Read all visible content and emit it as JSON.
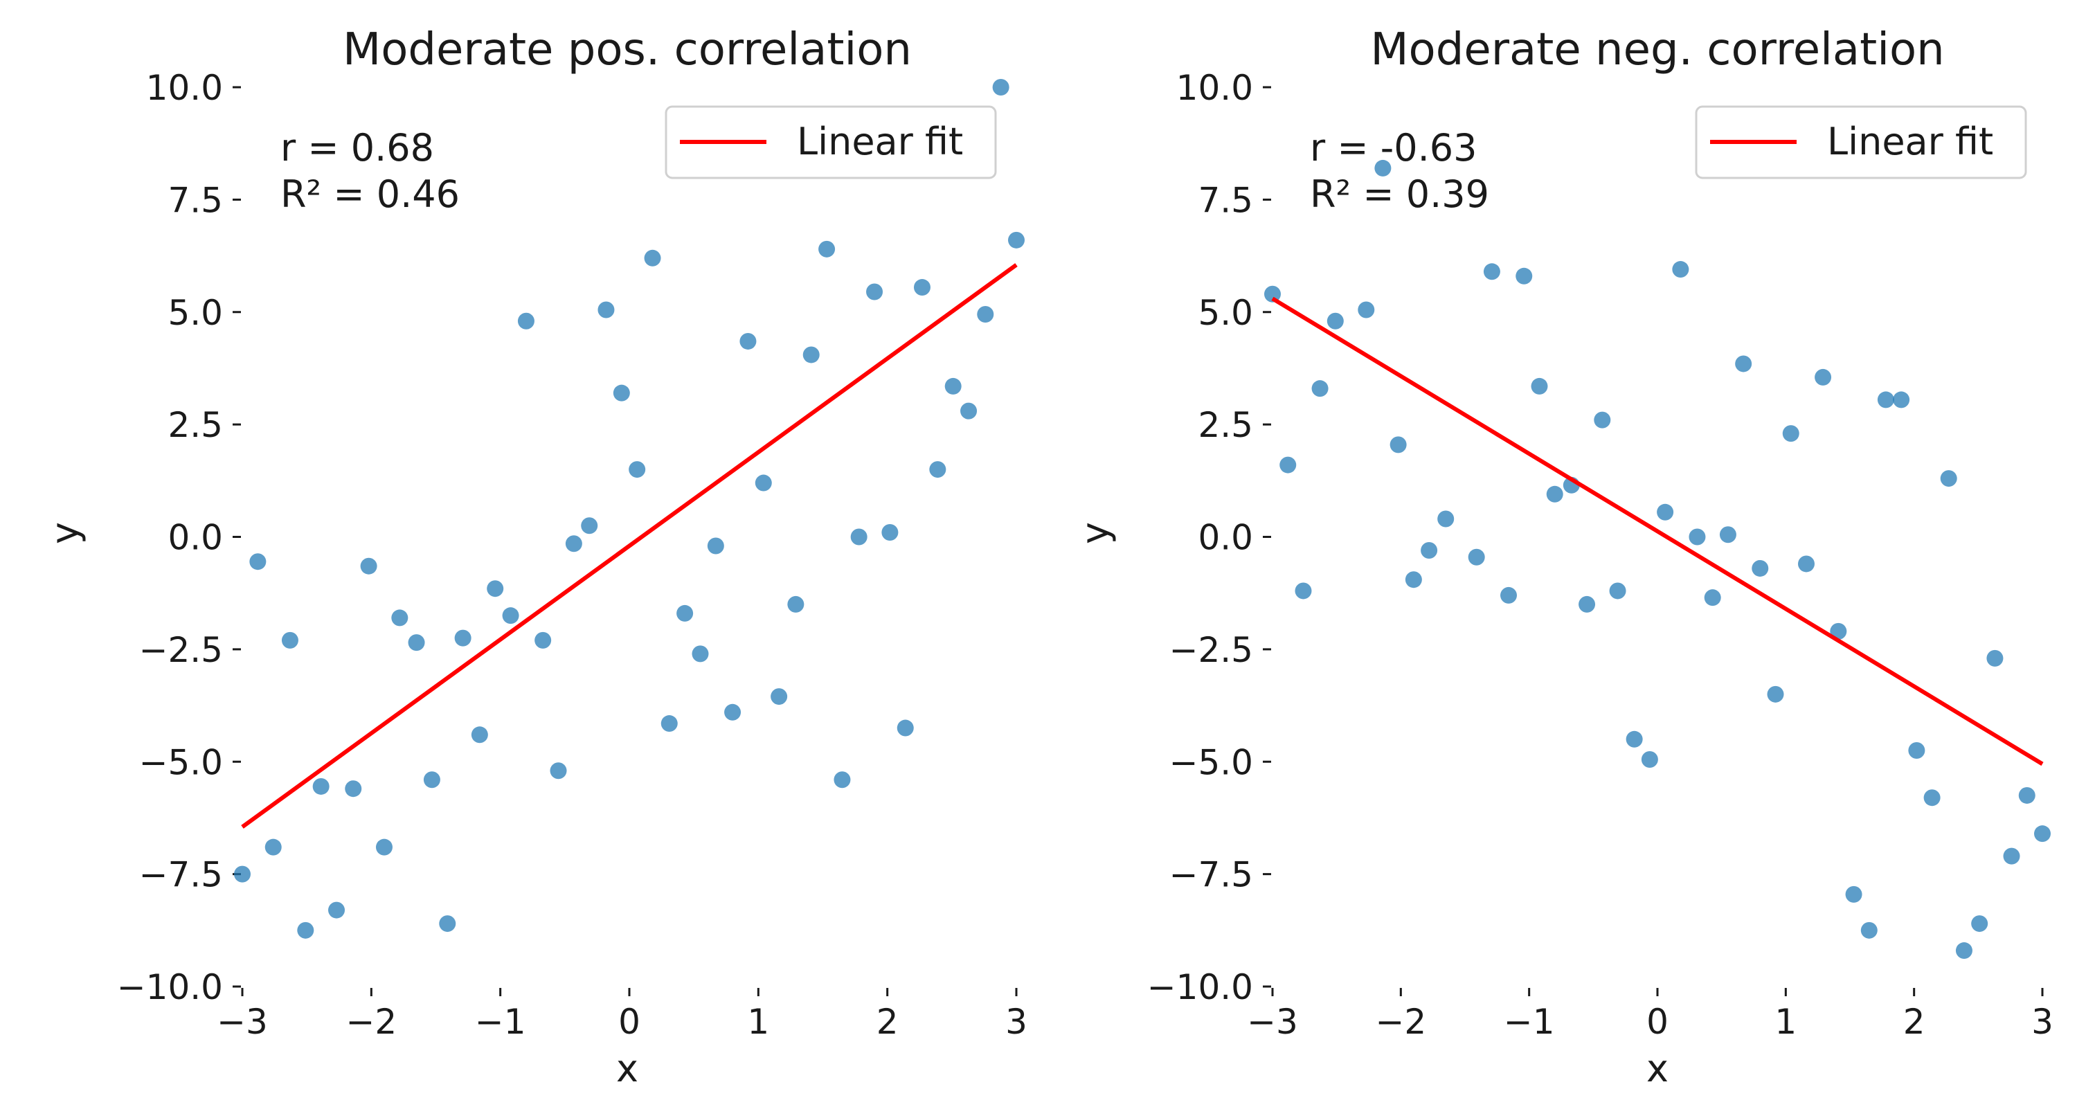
{
  "chart_data": [
    {
      "type": "scatter",
      "title": "Moderate pos. correlation",
      "xlabel": "x",
      "ylabel": "y",
      "xlim": [
        -3,
        3
      ],
      "ylim": [
        -10,
        10
      ],
      "xticks": [
        "−3",
        "−2",
        "−1",
        "0",
        "1",
        "2",
        "3"
      ],
      "yticks": [
        "10.0",
        "7.5",
        "5.0",
        "2.5",
        "0.0",
        "−2.5",
        "−5.0",
        "−7.5",
        "−10.0"
      ],
      "grid": false,
      "legend_position": "top-right",
      "annotation": [
        "r = 0.68",
        "R² = 0.46"
      ],
      "series": [
        {
          "type": "scatter",
          "color": "#1f77b4",
          "x": [
            -3.0,
            -2.88,
            -2.76,
            -2.63,
            -2.51,
            -2.39,
            -2.27,
            -2.14,
            -2.02,
            -1.9,
            -1.78,
            -1.65,
            -1.53,
            -1.41,
            -1.29,
            -1.16,
            -1.04,
            -0.92,
            -0.8,
            -0.67,
            -0.55,
            -0.43,
            -0.31,
            -0.18,
            -0.06,
            0.06,
            0.18,
            0.31,
            0.43,
            0.55,
            0.67,
            0.8,
            0.92,
            1.04,
            1.16,
            1.29,
            1.41,
            1.53,
            1.65,
            1.78,
            1.9,
            2.02,
            2.14,
            2.27,
            2.39,
            2.51,
            2.63,
            2.76,
            2.88,
            3.0
          ],
          "y": [
            -7.5,
            -0.55,
            -6.9,
            -2.3,
            -8.75,
            -5.55,
            -8.3,
            -5.6,
            -0.65,
            -6.9,
            -1.8,
            -2.35,
            -5.4,
            -8.6,
            -2.25,
            -4.4,
            -1.15,
            -1.75,
            4.8,
            -2.3,
            -5.2,
            -0.15,
            0.25,
            5.05,
            3.2,
            1.5,
            6.2,
            -4.15,
            -1.7,
            -2.6,
            -0.2,
            -3.9,
            4.35,
            1.2,
            -3.55,
            -1.5,
            4.05,
            6.4,
            -5.4,
            0.0,
            5.45,
            0.1,
            -4.25,
            5.55,
            1.5,
            3.35,
            2.8,
            4.95,
            10.0,
            6.6
          ]
        },
        {
          "type": "line",
          "name": "Linear fit",
          "color": "#ff0000",
          "x": [
            -3.0,
            3.0
          ],
          "y": [
            -6.45,
            6.05
          ]
        }
      ]
    },
    {
      "type": "scatter",
      "title": "Moderate neg. correlation",
      "xlabel": "x",
      "ylabel": "y",
      "xlim": [
        -3,
        3
      ],
      "ylim": [
        -10,
        10
      ],
      "xticks": [
        "−3",
        "−2",
        "−1",
        "0",
        "1",
        "2",
        "3"
      ],
      "yticks": [
        "10.0",
        "7.5",
        "5.0",
        "2.5",
        "0.0",
        "−2.5",
        "−5.0",
        "−7.5",
        "−10.0"
      ],
      "grid": false,
      "legend_position": "top-right",
      "annotation": [
        "r = -0.63",
        "R² = 0.39"
      ],
      "series": [
        {
          "type": "scatter",
          "color": "#1f77b4",
          "x": [
            -3.0,
            -2.88,
            -2.76,
            -2.63,
            -2.51,
            -2.27,
            -2.14,
            -2.02,
            -1.9,
            -1.78,
            -1.65,
            -1.41,
            -1.29,
            -1.16,
            -1.04,
            -0.92,
            -0.8,
            -0.67,
            -0.55,
            -0.43,
            -0.31,
            -0.18,
            -0.06,
            0.06,
            0.18,
            0.31,
            0.43,
            0.55,
            0.67,
            0.8,
            0.92,
            1.04,
            1.16,
            1.29,
            1.41,
            1.53,
            1.65,
            1.78,
            1.9,
            2.02,
            2.14,
            2.27,
            2.39,
            2.51,
            2.63,
            2.76,
            2.88,
            3.0
          ],
          "y": [
            5.4,
            1.6,
            -1.2,
            3.3,
            4.8,
            5.05,
            8.2,
            2.05,
            -0.95,
            -0.3,
            0.4,
            -0.45,
            5.9,
            -1.3,
            5.8,
            3.35,
            0.95,
            1.15,
            -1.5,
            2.6,
            -1.2,
            -4.5,
            -4.95,
            0.55,
            5.95,
            0.0,
            -1.35,
            0.05,
            3.85,
            -0.7,
            -3.5,
            2.3,
            -0.6,
            3.55,
            -2.1,
            -7.95,
            -8.75,
            3.05,
            3.05,
            -4.75,
            -5.8,
            1.3,
            -9.2,
            -8.6,
            -2.7,
            -7.1,
            -5.75,
            -6.6
          ]
        },
        {
          "type": "line",
          "name": "Linear fit",
          "color": "#ff0000",
          "x": [
            -3.0,
            3.0
          ],
          "y": [
            5.3,
            -5.05
          ]
        }
      ]
    }
  ]
}
